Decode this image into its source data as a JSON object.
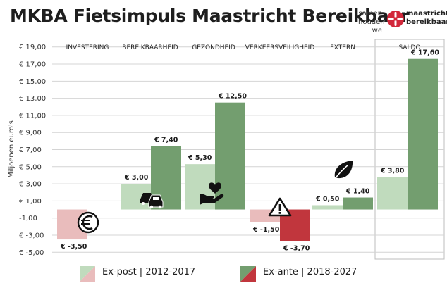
{
  "header": {
    "title": "MKBA Fietsimpuls Maastricht Bereikbaar",
    "brand_tagline": [
      "samen",
      "houden we"
    ],
    "brand_name": [
      "maastricht",
      "bereikbaar.nl"
    ]
  },
  "colors": {
    "expost_green": "#c0dbbd",
    "expost_red": "#e9bcbc",
    "exante_green": "#739e6f",
    "exante_red": "#c1363d",
    "grid": "#d4d4d4",
    "logo_red": "#d2283b"
  },
  "chart_data": {
    "type": "bar",
    "ylabel": "Miljoenen euro's",
    "ylim": [
      -5.8,
      19.8
    ],
    "yticks": [
      19,
      17,
      15,
      13,
      11,
      9,
      7,
      5,
      3,
      1,
      -1,
      -3,
      -5
    ],
    "ytick_labels": [
      "€ 19,00",
      "€ 17,00",
      "€ 15,00",
      "€ 13,00",
      "€ 11,00",
      "€ 9,00",
      "€ 7,00",
      "€ 5,00",
      "€ 3,00",
      "€ 1,00",
      "-1,00",
      "€ -3,00",
      "€ -5,00"
    ],
    "grid": true,
    "categories": [
      "INVESTERING",
      "BEREIKBAARHEID",
      "GEZONDHEID",
      "VERKEERSVEILIGHEID",
      "EXTERN",
      "SALDO"
    ],
    "category_icons": [
      "euro-coin-icon",
      "traffic-cars-icon",
      "heart-in-hand-icon",
      "warning-triangle-icon",
      "leaf-icon",
      ""
    ],
    "series": [
      {
        "name": "Ex-post | 2012-2017",
        "values": [
          -3.5,
          3.0,
          5.3,
          -1.5,
          0.5,
          3.8
        ],
        "labels": [
          "€ -3,50",
          "€ 3,00",
          "€ 5,30",
          "€ -1,50",
          "€ 0,50",
          "€ 3,80"
        ]
      },
      {
        "name": "Ex-ante | 2018-2027",
        "values": [
          null,
          7.4,
          12.5,
          -3.7,
          1.4,
          17.6
        ],
        "labels": [
          "",
          "€ 7,40",
          "€ 12,50",
          "€ -3,70",
          "€ 1,40",
          "€ 17,60"
        ]
      }
    ],
    "legend_position": "bottom"
  }
}
